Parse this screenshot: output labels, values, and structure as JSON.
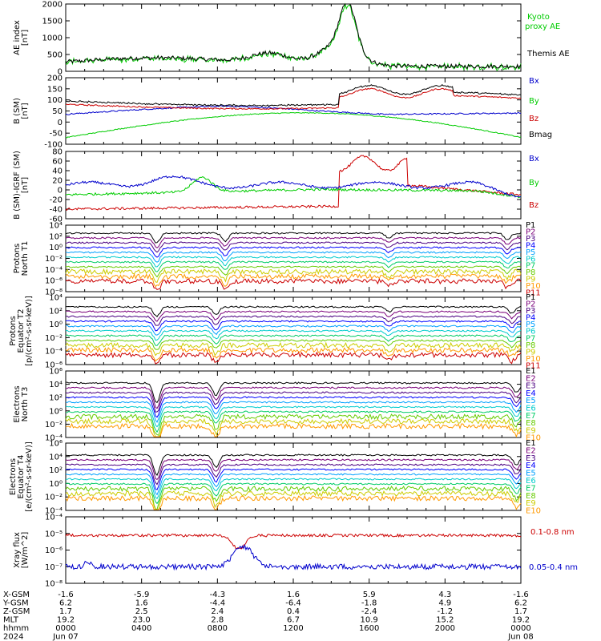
{
  "colors": {
    "black": "#000000",
    "green": "#00cc00",
    "blue": "#0000cc",
    "red": "#cc0000",
    "p_levels": [
      "#000000",
      "#7a007a",
      "#4b0082",
      "#0000ff",
      "#00a0ff",
      "#00cccc",
      "#00cc66",
      "#66cc00",
      "#cccc00",
      "#ff9900",
      "#cc0000"
    ]
  },
  "chart_data": [
    {
      "id": "ae",
      "type": "line",
      "ylabel": [
        "AE index",
        "[nT]"
      ],
      "yticks": [
        "2000",
        "1500",
        "1000",
        "500",
        "0"
      ],
      "ylim": [
        0,
        2000
      ],
      "series": [
        {
          "name": "Kyoto proxy AE",
          "color": "green"
        },
        {
          "name": "Themis AE",
          "color": "black"
        }
      ]
    },
    {
      "id": "bsm",
      "type": "line",
      "ylabel": [
        "B (SM)",
        "[nT]"
      ],
      "yticks": [
        "200",
        "150",
        "100",
        "50",
        "0",
        "-50",
        "-100"
      ],
      "ylim": [
        -100,
        200
      ],
      "series": [
        {
          "name": "Bx",
          "color": "blue"
        },
        {
          "name": "By",
          "color": "green"
        },
        {
          "name": "Bz",
          "color": "red"
        },
        {
          "name": "Bmag",
          "color": "black"
        }
      ]
    },
    {
      "id": "bigrf",
      "type": "line",
      "ylabel": [
        "B (SM)-IGRF (SM)",
        "[nT]"
      ],
      "yticks": [
        "80",
        "60",
        "40",
        "20",
        "0",
        "-20",
        "-40",
        "-60"
      ],
      "ylim": [
        -60,
        80
      ],
      "series": [
        {
          "name": "Bx",
          "color": "blue"
        },
        {
          "name": "By",
          "color": "green"
        },
        {
          "name": "Bz",
          "color": "red"
        }
      ]
    },
    {
      "id": "pn",
      "type": "line",
      "ylabel": [
        "Protons",
        "North T1"
      ],
      "yticks": [
        "10⁴",
        "10²",
        "10⁰",
        "10⁻²",
        "10⁻⁴",
        "10⁻⁶",
        "10⁻⁸"
      ],
      "series_labels": [
        "P1",
        "P2",
        "P3",
        "P4",
        "P5",
        "P6",
        "P7",
        "P8",
        "P9",
        "P10",
        "P11"
      ]
    },
    {
      "id": "pe",
      "type": "line",
      "ylabel": [
        "Protons",
        "Equator T2",
        "[p/(cm²-s-sr-keV)]"
      ],
      "yticks": [
        "10⁴",
        "10²",
        "10⁰",
        "10⁻²",
        "10⁻⁴",
        "10⁻⁶"
      ],
      "series_labels": [
        "P1",
        "P2",
        "P3",
        "P4",
        "P5",
        "P6",
        "P7",
        "P8",
        "P9",
        "P10",
        "P11"
      ]
    },
    {
      "id": "en",
      "type": "line",
      "ylabel": [
        "Electrons",
        "North T3"
      ],
      "yticks": [
        "10⁶",
        "10⁴",
        "10²",
        "10⁰",
        "10⁻²",
        "10⁻⁴"
      ],
      "series_labels": [
        "E1",
        "E2",
        "E3",
        "E4",
        "E5",
        "E6",
        "E7",
        "E8",
        "E9",
        "E10"
      ]
    },
    {
      "id": "ee",
      "type": "line",
      "ylabel": [
        "Electrons",
        "Equator T4",
        "[e/(cm²-s-sr-keV)]"
      ],
      "yticks": [
        "10⁶",
        "10⁴",
        "10²",
        "10⁰",
        "10⁻²",
        "10⁻⁴"
      ],
      "series_labels": [
        "E1",
        "E2",
        "E3",
        "E4",
        "E5",
        "E6",
        "E7",
        "E8",
        "E9",
        "E10"
      ]
    },
    {
      "id": "xray",
      "type": "line",
      "ylabel": [
        "Xray flux",
        "[W/m^2]"
      ],
      "yticks": [
        "10⁻⁴",
        "10⁻⁵",
        "10⁻⁶",
        "10⁻⁷",
        "10⁻⁸"
      ],
      "series": [
        {
          "name": "0.1-0.8 nm",
          "color": "red"
        },
        {
          "name": "0.05-0.4 nm",
          "color": "blue"
        }
      ]
    }
  ],
  "xaxis": {
    "row_labels": [
      "X-GSM",
      "Y-GSM",
      "Z-GSM",
      "MLT",
      "hhmm",
      "2024"
    ],
    "columns": [
      [
        "-1.6",
        "6.2",
        "1.7",
        "19.2",
        "0000",
        "Jun 07"
      ],
      [
        "-5.9",
        "1.6",
        "2.5",
        "23.0",
        "0400",
        ""
      ],
      [
        "-4.3",
        "-4.4",
        "2.4",
        "2.8",
        "0800",
        ""
      ],
      [
        "1.6",
        "-6.4",
        "0.4",
        "6.7",
        "1200",
        ""
      ],
      [
        "5.9",
        "-1.8",
        "-2.4",
        "10.9",
        "1600",
        ""
      ],
      [
        "4.3",
        "4.9",
        "-1.2",
        "15.2",
        "2000",
        ""
      ],
      [
        "-1.6",
        "6.2",
        "1.7",
        "19.2",
        "0000",
        "Jun 08"
      ]
    ]
  }
}
